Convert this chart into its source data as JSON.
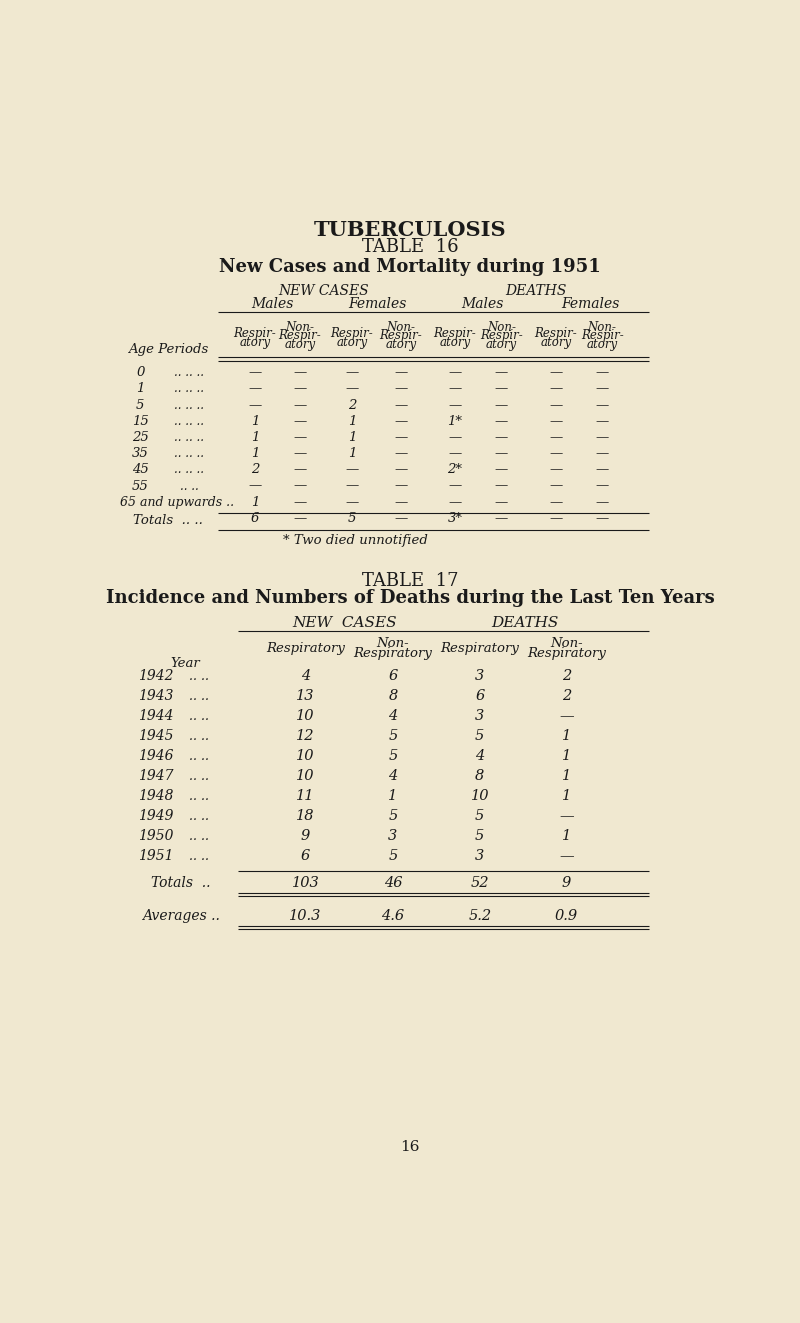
{
  "bg_color": "#f0e8d0",
  "text_color": "#1a1a1a",
  "title1": "TUBERCULOSIS",
  "table16_title": "TABLE  16",
  "table16_subtitle": "New Cases and Mortality during 1951",
  "t16_note": "* Two died unnotified",
  "table17_title": "TABLE  17",
  "table17_subtitle": "Incidence and Numbers of Deaths during the Last Ten Years",
  "page_number": "16",
  "t16_header_group1": "NEW CASES",
  "t16_header_group2": "DEATHS",
  "t16_header_males": "Males",
  "t16_header_females": "Females",
  "t16_header_males2": "Males",
  "t16_header_females2": "Females",
  "t16_age_periods": [
    "0",
    "1",
    "5",
    "15",
    "25",
    "35",
    "45",
    "55",
    "65 and upwards ..",
    "Totals"
  ],
  "t16_age_dots": [
    ".. .. ..",
    ".. .. ..",
    ".. .. ..",
    ".. .. ..",
    ".. .. ..",
    ".. .. ..",
    ".. .. ..",
    ".. ..",
    "",
    ".. .."
  ],
  "t16_data": [
    [
      "—",
      "—",
      "—",
      "—",
      "—",
      "—",
      "—",
      "—"
    ],
    [
      "—",
      "—",
      "—",
      "—",
      "—",
      "—",
      "—",
      "—"
    ],
    [
      "—",
      "—",
      "2",
      "—",
      "—",
      "—",
      "—",
      "—"
    ],
    [
      "1",
      "—",
      "1",
      "—",
      "1*",
      "—",
      "—",
      "—"
    ],
    [
      "1",
      "—",
      "1",
      "—",
      "—",
      "—",
      "—",
      "—"
    ],
    [
      "1",
      "—",
      "1",
      "—",
      "—",
      "—",
      "—",
      "—"
    ],
    [
      "2",
      "—",
      "—",
      "—",
      "2*",
      "—",
      "—",
      "—"
    ],
    [
      "—",
      "—",
      "—",
      "—",
      "—",
      "—",
      "—",
      "—"
    ],
    [
      "1",
      "—",
      "—",
      "—",
      "—",
      "—",
      "—",
      "—"
    ],
    [
      "6",
      "—",
      "5",
      "—",
      "3*",
      "—",
      "—",
      "—"
    ]
  ],
  "t17_new_cases_header": "NEW  CASES",
  "t17_deaths_header": "DEATHS",
  "t17_years": [
    "1942",
    "1943",
    "1944",
    "1945",
    "1946",
    "1947",
    "1948",
    "1949",
    "1950",
    "1951"
  ],
  "t17_year_dots": [
    ".. ..",
    ".. ..",
    ".. ..",
    ".. ..",
    ".. ..",
    ".. ..",
    ".. ..",
    ".. ..",
    ".. ..",
    ".. .."
  ],
  "t17_data": [
    [
      "4",
      "6",
      "3",
      "2"
    ],
    [
      "13",
      "8",
      "6",
      "2"
    ],
    [
      "10",
      "4",
      "3",
      "—"
    ],
    [
      "12",
      "5",
      "5",
      "1"
    ],
    [
      "10",
      "5",
      "4",
      "1"
    ],
    [
      "10",
      "4",
      "8",
      "1"
    ],
    [
      "11",
      "1",
      "10",
      "1"
    ],
    [
      "18",
      "5",
      "5",
      "—"
    ],
    [
      "9",
      "3",
      "5",
      "1"
    ],
    [
      "6",
      "5",
      "3",
      "—"
    ]
  ],
  "t17_totals": [
    "103",
    "46",
    "52",
    "9"
  ],
  "t17_averages": [
    "10.3",
    "4.6",
    "5.2",
    "0.9"
  ]
}
